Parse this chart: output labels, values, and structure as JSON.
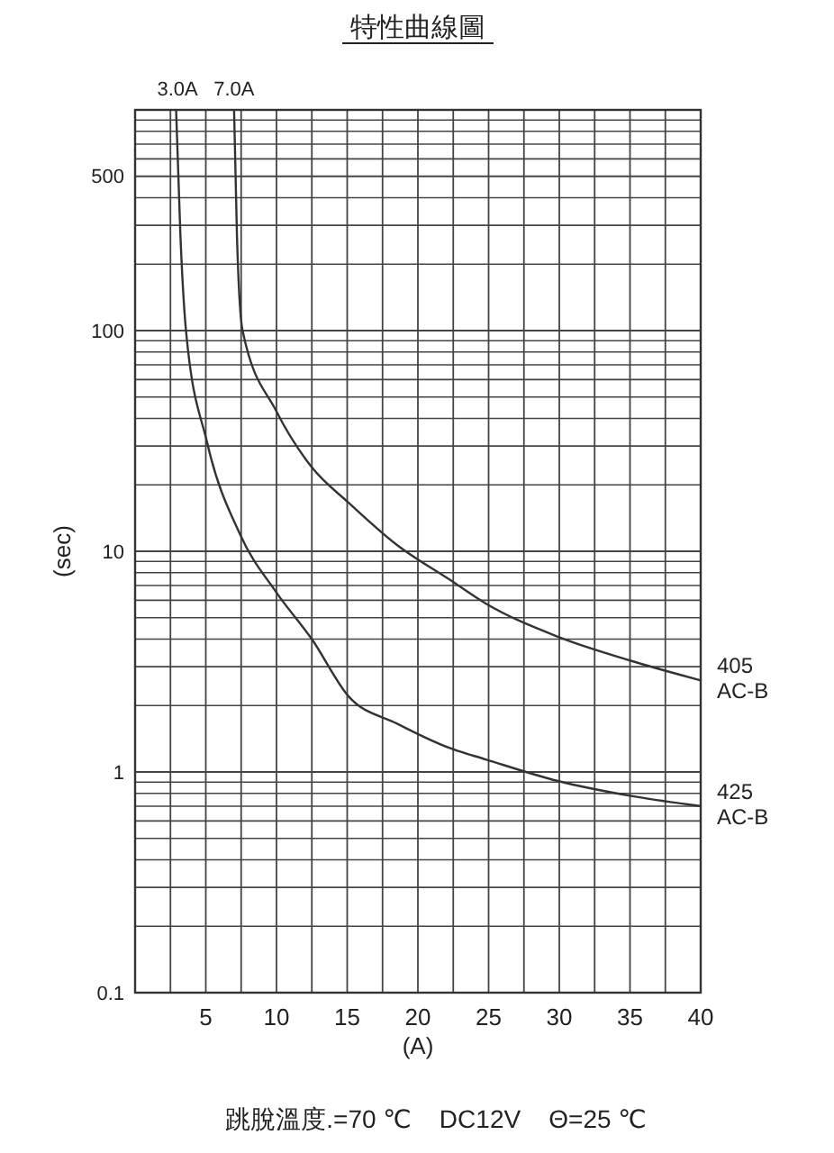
{
  "chart_data": {
    "type": "line",
    "title": "特性曲線圖",
    "xlabel": "(A)",
    "ylabel": "(sec)",
    "log": "y",
    "grid": true,
    "legend": false,
    "marker": "none",
    "line_style": "solid",
    "xlim": [
      0,
      40
    ],
    "ylim": [
      0.1,
      1000
    ],
    "xticks": [
      {
        "value": 2.5,
        "label": null
      },
      5,
      {
        "value": 7.5,
        "label": null
      },
      10,
      {
        "value": 12.5,
        "label": null
      },
      15,
      {
        "value": 17.5,
        "label": null
      },
      20,
      {
        "value": 22.5,
        "label": null
      },
      25,
      {
        "value": 27.5,
        "label": null
      },
      30,
      {
        "value": 32.5,
        "label": null
      },
      35,
      {
        "value": 37.5,
        "label": null
      },
      40
    ],
    "yticks": [
      0.1,
      {
        "value": 0.2,
        "label": null
      },
      {
        "value": 0.3,
        "label": null
      },
      {
        "value": 0.4,
        "label": null
      },
      {
        "value": 0.5,
        "label": null
      },
      {
        "value": 0.6,
        "label": null
      },
      {
        "value": 0.7,
        "label": null
      },
      {
        "value": 0.8,
        "label": null
      },
      {
        "value": 0.9,
        "label": null
      },
      1,
      {
        "value": 2,
        "label": null
      },
      {
        "value": 3,
        "label": null
      },
      {
        "value": 4,
        "label": null
      },
      {
        "value": 5,
        "label": null
      },
      {
        "value": 6,
        "label": null
      },
      {
        "value": 7,
        "label": null
      },
      {
        "value": 8,
        "label": null
      },
      {
        "value": 9,
        "label": null
      },
      10,
      {
        "value": 20,
        "label": null
      },
      {
        "value": 30,
        "label": null
      },
      {
        "value": 40,
        "label": null
      },
      {
        "value": 50,
        "label": null
      },
      {
        "value": 60,
        "label": null
      },
      {
        "value": 70,
        "label": null
      },
      {
        "value": 80,
        "label": null
      },
      {
        "value": 90,
        "label": null
      },
      100,
      {
        "value": 200,
        "label": null
      },
      {
        "value": 300,
        "label": null
      },
      {
        "value": 400,
        "label": null
      },
      500,
      {
        "value": 600,
        "label": null
      },
      {
        "value": 700,
        "label": null
      },
      {
        "value": 800,
        "label": null
      },
      {
        "value": 900,
        "label": null
      },
      {
        "value": 1000,
        "label": null
      }
    ],
    "series": [
      {
        "name": "405 AC-B",
        "color": "#333333",
        "x": [
          7.0,
          7.2,
          7.6,
          10,
          12.5,
          15.1,
          18.5,
          22.3,
          24.8,
          29.9,
          35,
          40
        ],
        "values": [
          1000,
          275,
          100,
          43,
          24,
          16.6,
          10.7,
          7.4,
          5.8,
          4.1,
          3.2,
          2.6
        ]
      },
      {
        "name": "425 AC-B",
        "color": "#333333",
        "x": [
          2.9,
          3.2,
          3.6,
          5.1,
          7.4,
          10,
          12.5,
          15.1,
          18.5,
          22.3,
          24.8,
          29.9,
          35,
          40
        ],
        "values": [
          1000,
          275,
          100,
          31,
          12,
          6.5,
          4.0,
          2.2,
          1.66,
          1.28,
          1.14,
          0.91,
          0.78,
          0.7
        ]
      }
    ],
    "annotations": [
      {
        "text": "3.0A",
        "x": 3,
        "y": 1000
      },
      {
        "text": "7.0A",
        "x": 7,
        "y": 1000
      },
      "跳脫溫度.=70 ℃    DC12V    Θ=25 ℃"
    ]
  }
}
